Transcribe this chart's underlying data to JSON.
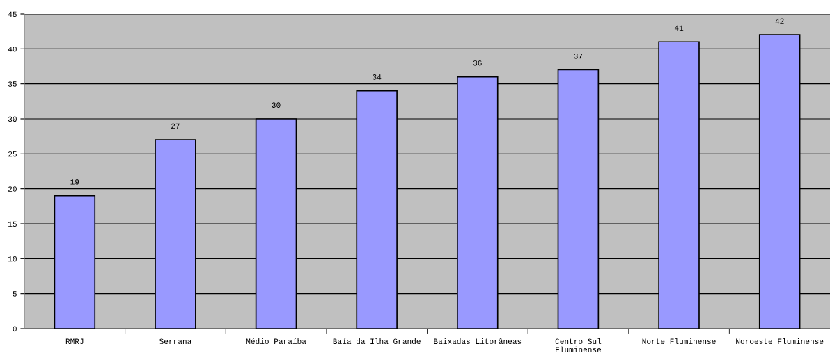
{
  "chart_data": {
    "type": "bar",
    "categories": [
      "RMRJ",
      "Serrana",
      "Médio Paraíba",
      "Baía da Ilha Grande",
      "Baixadas Litorâneas",
      "Centro Sul\nFluminense",
      "Norte Fluminense",
      "Noroeste Fluminense"
    ],
    "values": [
      19,
      27,
      30,
      34,
      36,
      37,
      41,
      42
    ],
    "color": "#9999ff",
    "ylim": [
      0,
      45
    ],
    "yticks": [
      0,
      5,
      10,
      15,
      20,
      25,
      30,
      35,
      40,
      45
    ],
    "grid": "y",
    "data_labels": true
  }
}
